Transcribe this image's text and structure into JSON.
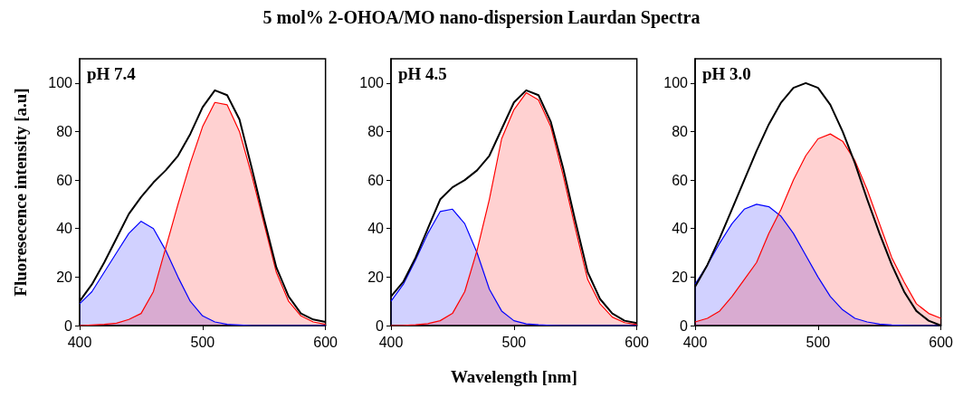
{
  "chart_data": [
    {
      "type": "area",
      "title": "5 mol% 2-OHOA/MO nano-dispersion Laurdan Spectra",
      "ylabel": "Fluoresecence intensity [a.u]",
      "annotations": [
        "pH 7.4"
      ],
      "x": [
        400,
        410,
        420,
        430,
        440,
        450,
        460,
        470,
        480,
        490,
        500,
        510,
        520,
        530,
        540,
        550,
        560,
        570,
        580,
        590,
        600
      ],
      "series": [
        {
          "type": "line",
          "color": "#000000",
          "values": [
            10,
            17,
            26,
            36,
            46,
            53,
            59,
            64,
            70,
            79,
            90,
            97,
            95,
            85,
            65,
            44,
            24,
            12,
            5,
            2.5,
            1.5
          ]
        },
        {
          "color": "#0000ff",
          "values": [
            9,
            14,
            22,
            30,
            38,
            43,
            40,
            31,
            20,
            10,
            4,
            1.5,
            0.5,
            0.2,
            0,
            0,
            0,
            0,
            0,
            0,
            0
          ]
        },
        {
          "color": "#ff0000",
          "values": [
            0,
            0.2,
            0.5,
            1,
            2.5,
            5,
            14,
            32,
            50,
            67,
            82,
            92,
            91,
            80,
            62,
            42,
            22,
            10,
            4,
            1.5,
            0.5
          ]
        }
      ],
      "xlim": [
        400,
        600
      ],
      "xticks": [
        400,
        500,
        600
      ],
      "ylim": [
        0,
        110
      ],
      "yticks": [
        0,
        20,
        40,
        60,
        80,
        100
      ]
    },
    {
      "type": "area",
      "xlabel": "Wavelength [nm]",
      "annotations": [
        "pH 4.5"
      ],
      "x": [
        400,
        410,
        420,
        430,
        440,
        450,
        460,
        470,
        480,
        490,
        500,
        510,
        520,
        530,
        540,
        550,
        560,
        570,
        580,
        590,
        600
      ],
      "series": [
        {
          "type": "line",
          "color": "#000000",
          "values": [
            12,
            18,
            28,
            40,
            52,
            57,
            60,
            64,
            70,
            81,
            92,
            97,
            95,
            84,
            65,
            43,
            22,
            11,
            5,
            2,
            1
          ]
        },
        {
          "color": "#0000ff",
          "values": [
            10,
            17,
            27,
            38,
            47,
            48,
            42,
            30,
            15,
            6,
            2,
            0.7,
            0.3,
            0.1,
            0,
            0,
            0,
            0,
            0,
            0,
            0
          ]
        },
        {
          "color": "#ff0000",
          "values": [
            0,
            0.1,
            0.3,
            0.8,
            2,
            5,
            14,
            31,
            52,
            77,
            89,
            96,
            93,
            82,
            62,
            40,
            19,
            9,
            3.5,
            1.2,
            0.4
          ]
        }
      ],
      "xlim": [
        400,
        600
      ],
      "xticks": [
        400,
        500,
        600
      ],
      "ylim": [
        0,
        110
      ],
      "yticks": [
        0,
        20,
        40,
        60,
        80,
        100
      ]
    },
    {
      "type": "area",
      "annotations": [
        "pH 3.0"
      ],
      "x": [
        400,
        410,
        420,
        430,
        440,
        450,
        460,
        470,
        480,
        490,
        500,
        510,
        520,
        530,
        540,
        550,
        560,
        570,
        580,
        590,
        600
      ],
      "series": [
        {
          "type": "line",
          "color": "#000000",
          "values": [
            16,
            25,
            36,
            48,
            60,
            72,
            83,
            92,
            98,
            100,
            98,
            91,
            80,
            67,
            52,
            38,
            25,
            14,
            6,
            2,
            0
          ]
        },
        {
          "color": "#0000ff",
          "values": [
            17,
            25,
            34,
            42,
            48,
            50,
            49,
            45,
            38,
            29,
            20,
            12,
            6.5,
            3,
            1.5,
            0.6,
            0.2,
            0.1,
            0,
            0,
            0
          ]
        },
        {
          "color": "#ff0000",
          "values": [
            1.5,
            3,
            6,
            12,
            19,
            26,
            38,
            48,
            60,
            70,
            77,
            79,
            76,
            68,
            56,
            42,
            28,
            18,
            9,
            5,
            3
          ]
        }
      ],
      "xlim": [
        400,
        600
      ],
      "xticks": [
        400,
        500,
        600
      ],
      "ylim": [
        0,
        110
      ],
      "yticks": [
        0,
        20,
        40,
        60,
        80,
        100
      ]
    }
  ]
}
